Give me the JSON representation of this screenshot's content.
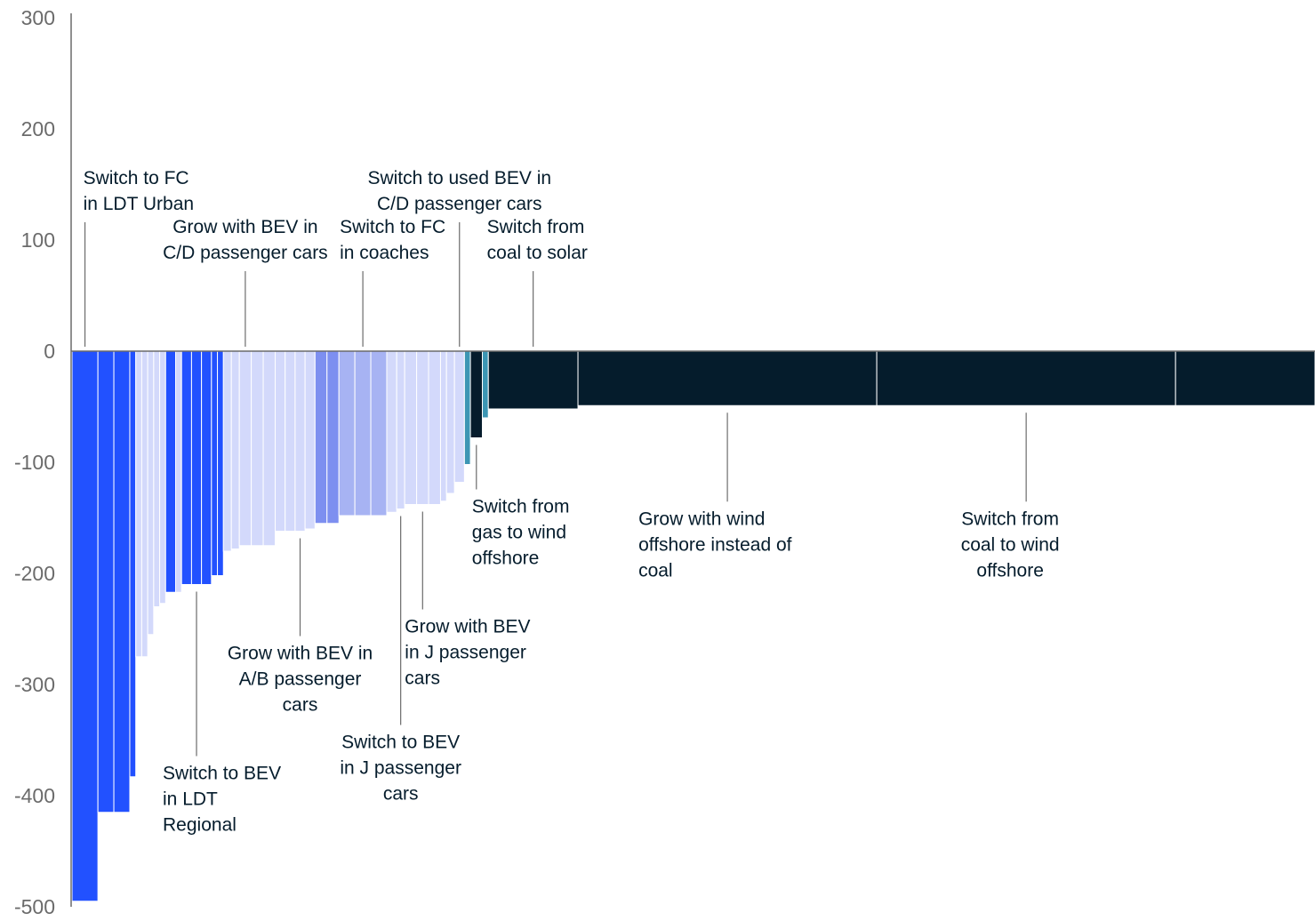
{
  "chart_data": {
    "type": "bar",
    "variable_width": true,
    "title": "",
    "xlabel": "",
    "ylabel": "",
    "ylim": [
      -500,
      300
    ],
    "y_ticks": [
      300,
      200,
      100,
      0,
      -100,
      -200,
      -300,
      -400,
      -500
    ],
    "grid": false,
    "legend": "none",
    "series": [
      {
        "name": "",
        "values": [
          -495,
          -415,
          -415,
          -383,
          -275,
          -275,
          -255,
          -230,
          -227,
          -217,
          -217,
          -210,
          -210,
          -210,
          -202,
          -202,
          -180,
          -178,
          -175,
          -175,
          -175,
          -162,
          -162,
          -162,
          -160,
          -155,
          -155,
          -148,
          -148,
          -148,
          -145,
          -142,
          -138,
          -138,
          -138,
          -135,
          -128,
          -118,
          -102,
          -78,
          -60,
          -52,
          -49,
          -49,
          -49
        ]
      }
    ],
    "bar_colors": [
      "#2251ff",
      "#2251ff",
      "#2251ff",
      "#2251ff",
      "#d3d9fb",
      "#d3d9fb",
      "#d3d9fb",
      "#d3d9fb",
      "#d3d9fb",
      "#2251ff",
      "#d3d9fb",
      "#2251ff",
      "#2251ff",
      "#2251ff",
      "#2251ff",
      "#2251ff",
      "#d3d9fb",
      "#d3d9fb",
      "#d3d9fb",
      "#d3d9fb",
      "#d3d9fb",
      "#d3d9fb",
      "#d3d9fb",
      "#d3d9fb",
      "#d3d9fb",
      "#7d8ff0",
      "#7d8ff0",
      "#a7b3f3",
      "#a7b3f3",
      "#a7b3f3",
      "#d3d9fb",
      "#d3d9fb",
      "#d3d9fb",
      "#d3d9fb",
      "#d3d9fb",
      "#d3d9fb",
      "#d3d9fb",
      "#d3d9fb",
      "#3c96b4",
      "#051c2c",
      "#3c96b4",
      "#051c2c",
      "#051c2c",
      "#051c2c",
      "#051c2c"
    ],
    "colors": {
      "blue_dark": "#2251ff",
      "blue_medium": "#7d8ff0",
      "blue_mid_light": "#a7b3f3",
      "blue_light": "#d3d9fb",
      "teal": "#3c96b4",
      "navy": "#051c2c",
      "axis": "#6b6b6b"
    },
    "annotations": [
      {
        "lines": [
          "Switch to FC",
          "in LDT Urban"
        ],
        "bar_index": 0,
        "placement": "above"
      },
      {
        "lines": [
          "Switch to BEV",
          "in LDT",
          "Regional"
        ],
        "bar_index": 12,
        "placement": "below"
      },
      {
        "lines": [
          "Grow with BEV in",
          "C/D passenger cars"
        ],
        "bar_index": 18,
        "placement": "above"
      },
      {
        "lines": [
          "Grow with BEV in",
          "A/B passenger",
          "cars"
        ],
        "bar_index": 23,
        "placement": "below"
      },
      {
        "lines": [
          "Switch to FC",
          "in coaches"
        ],
        "bar_index": 28,
        "placement": "above"
      },
      {
        "lines": [
          "Switch to BEV",
          "in J passenger",
          "cars"
        ],
        "bar_index": 31,
        "placement": "below"
      },
      {
        "lines": [
          "Grow with BEV",
          "in J passenger",
          "cars"
        ],
        "bar_index": 33,
        "placement": "below"
      },
      {
        "lines": [
          "Switch to used BEV in",
          "C/D passenger cars"
        ],
        "bar_index": 37,
        "placement": "above"
      },
      {
        "lines": [
          "Switch from",
          "gas to wind",
          "offshore"
        ],
        "bar_index": 39,
        "placement": "below"
      },
      {
        "lines": [
          "Switch from",
          "coal to solar"
        ],
        "bar_index": 41,
        "placement": "above"
      },
      {
        "lines": [
          "Grow with wind",
          "offshore instead of",
          "coal"
        ],
        "bar_index": 42,
        "placement": "below"
      },
      {
        "lines": [
          "Switch from",
          "coal to wind",
          "offshore"
        ],
        "bar_index": 43,
        "placement": "below"
      }
    ]
  }
}
